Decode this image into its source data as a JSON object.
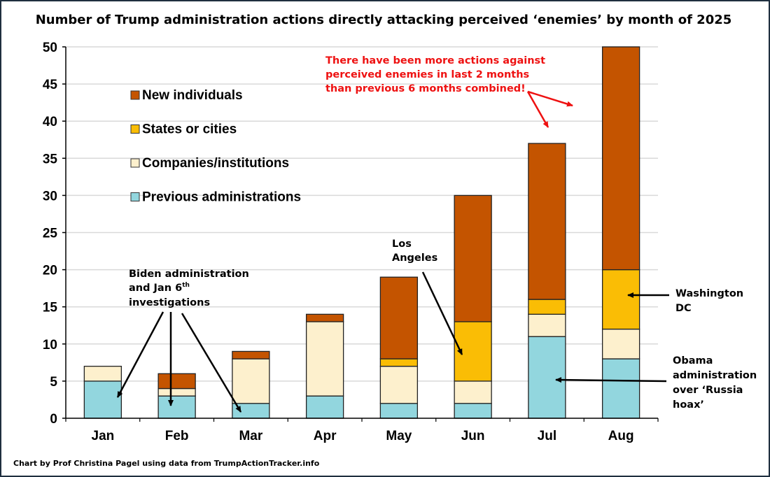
{
  "chart_data": {
    "type": "bar",
    "stacked": true,
    "title": "Number of Trump administration actions directly attacking perceived ‘enemies’ by month of 2025",
    "xlabel": "",
    "ylabel": "",
    "ylim": [
      0,
      50
    ],
    "yticks": [
      0,
      5,
      10,
      15,
      20,
      25,
      30,
      35,
      40,
      45,
      50
    ],
    "grid": true,
    "legend_position": "top-left",
    "categories": [
      "Jan",
      "Feb",
      "Mar",
      "Apr",
      "May",
      "Jun",
      "Jul",
      "Aug"
    ],
    "series": [
      {
        "name": "Previous administrations",
        "color": "#92d6de",
        "values": [
          5,
          3,
          2,
          3,
          2,
          2,
          11,
          8
        ]
      },
      {
        "name": "Companies/institutions",
        "color": "#fdf0cd",
        "values": [
          2,
          1,
          6,
          10,
          5,
          3,
          3,
          4
        ]
      },
      {
        "name": "States or cities",
        "color": "#fabd05",
        "values": [
          0,
          0,
          0,
          0,
          1,
          8,
          2,
          8
        ]
      },
      {
        "name": "New individuals",
        "color": "#c45400",
        "values": [
          0,
          2,
          1,
          1,
          11,
          17,
          21,
          30
        ]
      }
    ],
    "legend_order": [
      "New individuals",
      "States or cities",
      "Companies/institutions",
      "Previous administrations"
    ],
    "totals": [
      7,
      6,
      9,
      14,
      19,
      30,
      37,
      50
    ],
    "annotations": {
      "headline": [
        "There have been more actions against",
        "perceived enemies in last 2 months",
        "than previous 6 months combined!"
      ],
      "biden": {
        "lines": [
          "Biden administration",
          "and Jan 6",
          "investigations"
        ],
        "superscript": "th"
      },
      "los_angeles": [
        "Los",
        "Angeles"
      ],
      "washington": [
        "Washington",
        "DC"
      ],
      "obama": [
        "Obama",
        "administration",
        "over ‘Russia",
        "hoax’"
      ]
    },
    "credit": "Chart by Prof Christina Pagel using data from TrumpActionTracker.info"
  },
  "colors": {
    "annotation_red": "#ee1111",
    "frame": "#1f2f3f",
    "grid": "#d9d9d9"
  }
}
